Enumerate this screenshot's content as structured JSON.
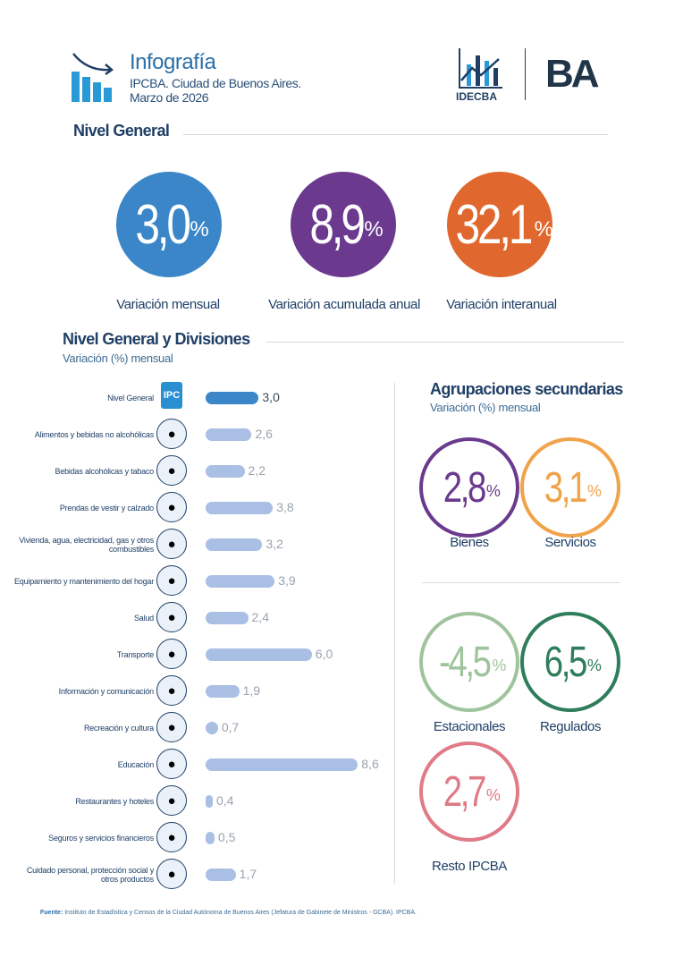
{
  "header": {
    "title": "Infografía",
    "subtitle": "IPCBA. Ciudad de Buenos Aires.",
    "date": "Marzo de 2026",
    "logo_idecba": "IDECBA",
    "logo_ba": "BA"
  },
  "nivel_general": {
    "heading": "Nivel General",
    "items": [
      {
        "value": "3,0",
        "unit": "%",
        "label": "Variación mensual",
        "color": "#3a86c8"
      },
      {
        "value": "8,9",
        "unit": "%",
        "label": "Variación acumulada anual",
        "color": "#6b3a8e"
      },
      {
        "value": "32,1",
        "unit": "%",
        "label": "Variación interanual",
        "color": "#e0682e"
      }
    ]
  },
  "divisiones": {
    "heading": "Nivel General y Divisiones",
    "subheading": "Variación (%) mensual",
    "rows": [
      {
        "label": "Nivel General",
        "value": 3.0,
        "display": "3,0",
        "icon": "ipc-ba-logo-icon",
        "highlight": true
      },
      {
        "label": "Alimentos y bebidas no alcohólicas",
        "value": 2.6,
        "display": "2,6",
        "icon": "groceries-icon"
      },
      {
        "label": "Bebidas alcohólicas y tabaco",
        "value": 2.2,
        "display": "2,2",
        "icon": "wine-bottle-icon"
      },
      {
        "label": "Prendas de vestir y calzado",
        "value": 3.8,
        "display": "3,8",
        "icon": "clothing-icon"
      },
      {
        "label": "Vivienda, agua, electricidad, gas y otros combustibles",
        "value": 3.2,
        "display": "3,2",
        "icon": "house-icon"
      },
      {
        "label": "Equipamiento y mantenimiento del hogar",
        "value": 3.9,
        "display": "3,9",
        "icon": "washing-machine-icon"
      },
      {
        "label": "Salud",
        "value": 2.4,
        "display": "2,4",
        "icon": "doctor-icon"
      },
      {
        "label": "Transporte",
        "value": 6.0,
        "display": "6,0",
        "icon": "airplane-icon"
      },
      {
        "label": "Información y comunicación",
        "value": 1.9,
        "display": "1,9",
        "icon": "computer-icon"
      },
      {
        "label": "Recreación y cultura",
        "value": 0.7,
        "display": "0,7",
        "icon": "popcorn-icon"
      },
      {
        "label": "Educación",
        "value": 8.6,
        "display": "8,6",
        "icon": "school-icon"
      },
      {
        "label": "Restaurantes y hoteles",
        "value": 0.4,
        "display": "0,4",
        "icon": "cloche-icon"
      },
      {
        "label": "Seguros y servicios financieros",
        "value": 0.5,
        "display": "0,5",
        "icon": "bank-icon"
      },
      {
        "label": "Cuidado personal, protección social y otros productos",
        "value": 1.7,
        "display": "1,7",
        "icon": "personal-care-icon"
      }
    ],
    "colors": {
      "highlight": "#3a86c8",
      "bar": "#a9bfe3"
    }
  },
  "agrupaciones": {
    "heading": "Agrupaciones secundarias",
    "subheading": "Variación (%) mensual",
    "items": [
      {
        "value": "2,8",
        "unit": "%",
        "label": "Bienes",
        "color": "#6b3a8e"
      },
      {
        "value": "3,1",
        "unit": "%",
        "label": "Servicios",
        "color": "#f0a34a"
      },
      {
        "value": "-4,5",
        "unit": "%",
        "label": "Estacionales",
        "color": "#9fc39c"
      },
      {
        "value": "6,5",
        "unit": "%",
        "label": "Regulados",
        "color": "#2e7d5b"
      },
      {
        "value": "2,7",
        "unit": "%",
        "label": "Resto IPCBA",
        "color": "#e07a86"
      }
    ]
  },
  "footer": {
    "source_label": "Fuente:",
    "source_text": " Instituto de Estadística y Censos de la Ciudad Autónoma de Buenos Aires (Jefatura de Gabinete de Ministros - GCBA). IPCBA."
  }
}
